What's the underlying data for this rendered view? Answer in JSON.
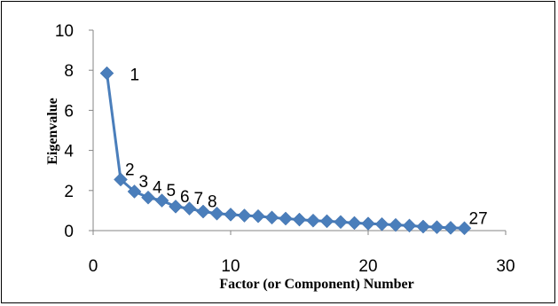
{
  "chart_data": {
    "type": "line",
    "title": "",
    "xlabel": "Factor (or Component) Number",
    "ylabel": "Eigenvalue",
    "xlim": [
      0,
      30
    ],
    "ylim": [
      0,
      10
    ],
    "x_ticks": [
      0,
      10,
      20,
      30
    ],
    "y_ticks": [
      0,
      2,
      4,
      6,
      8,
      10
    ],
    "grid": false,
    "legend": "none",
    "color": "#4a7ebb",
    "series": [
      {
        "x": [
          1,
          2,
          3,
          4,
          5,
          6,
          7,
          8,
          9,
          10,
          11,
          12,
          13,
          14,
          15,
          16,
          17,
          18,
          19,
          20,
          21,
          22,
          23,
          24,
          25,
          26,
          27
        ],
        "values": [
          7.85,
          2.55,
          1.95,
          1.65,
          1.5,
          1.2,
          1.1,
          0.95,
          0.85,
          0.8,
          0.75,
          0.72,
          0.65,
          0.6,
          0.55,
          0.5,
          0.47,
          0.43,
          0.38,
          0.35,
          0.32,
          0.28,
          0.25,
          0.2,
          0.17,
          0.14,
          0.12
        ]
      }
    ],
    "data_labels": [
      {
        "x": 1,
        "text": "1"
      },
      {
        "x": 2,
        "text": "2"
      },
      {
        "x": 3,
        "text": "3"
      },
      {
        "x": 4,
        "text": "4"
      },
      {
        "x": 5,
        "text": "5"
      },
      {
        "x": 6,
        "text": "6"
      },
      {
        "x": 7,
        "text": "7"
      },
      {
        "x": 8,
        "text": "8"
      },
      {
        "x": 27,
        "text": "27"
      }
    ]
  }
}
